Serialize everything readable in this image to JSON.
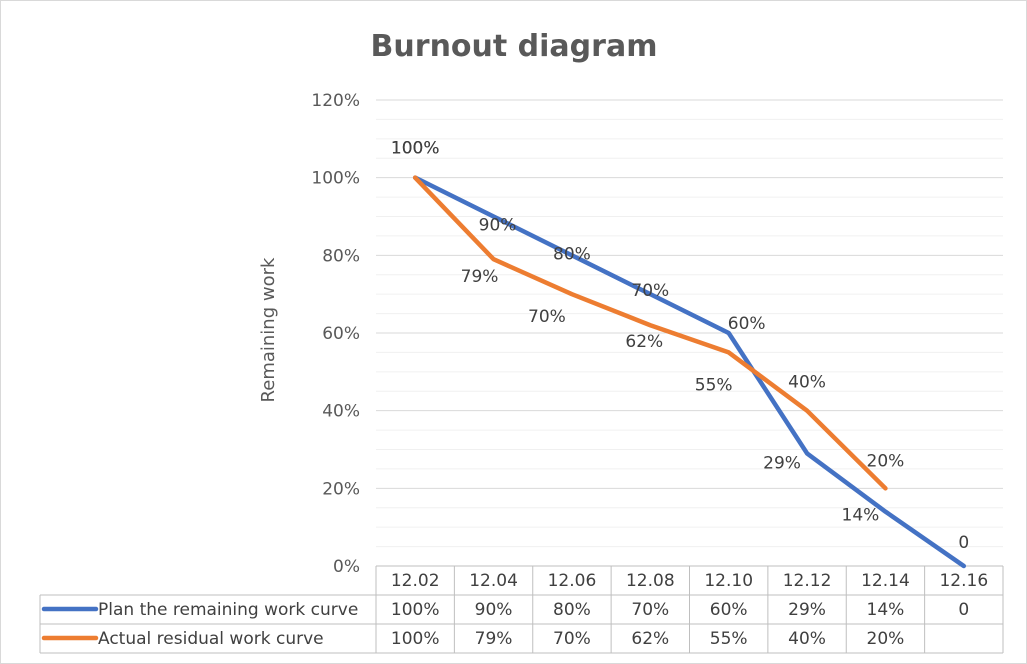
{
  "chart_data": {
    "type": "line",
    "title": "Burnout diagram",
    "xlabel": "",
    "ylabel": "Remaining work",
    "ylim": [
      0,
      120
    ],
    "yticks": [
      "0%",
      "20%",
      "40%",
      "60%",
      "80%",
      "100%",
      "120%"
    ],
    "categories": [
      "12.02",
      "12.04",
      "12.06",
      "12.08",
      "12.10",
      "12.12",
      "12.14",
      "12.16"
    ],
    "grid": true,
    "legend": "data-table",
    "series": [
      {
        "name": "Plan the remaining work curve",
        "color": "#4472C4",
        "values": [
          100,
          90,
          80,
          70,
          60,
          29,
          14,
          0
        ],
        "labels": [
          "100%",
          "90%",
          "80%",
          "70%",
          "60%",
          "29%",
          "14%",
          "0"
        ]
      },
      {
        "name": "Actual residual work curve",
        "color": "#ED7D31",
        "values": [
          100,
          79,
          70,
          62,
          55,
          40,
          20,
          null
        ],
        "labels": [
          "100%",
          "79%",
          "70%",
          "62%",
          "55%",
          "40%",
          "20%",
          ""
        ]
      }
    ]
  }
}
